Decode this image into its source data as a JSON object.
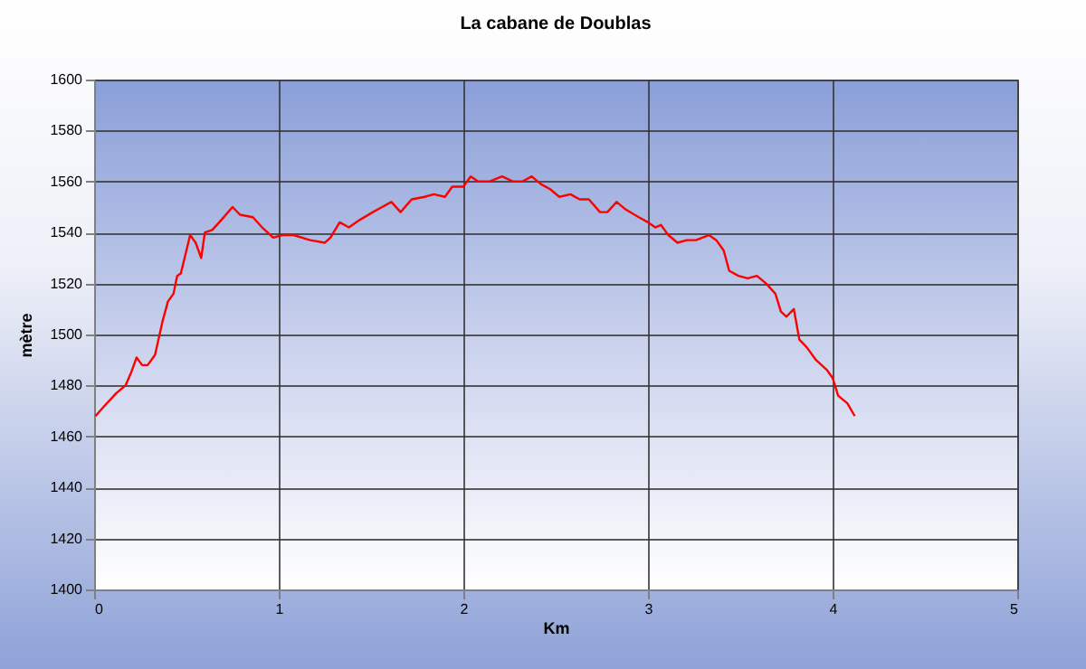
{
  "chart_data": {
    "type": "line",
    "title": "La cabane de Doublas",
    "xlabel": "Km",
    "ylabel": "mètre",
    "x": [
      0.007,
      0.056,
      0.12,
      0.17,
      0.2,
      0.23,
      0.26,
      0.29,
      0.33,
      0.37,
      0.4,
      0.43,
      0.45,
      0.47,
      0.5,
      0.52,
      0.55,
      0.58,
      0.6,
      0.64,
      0.69,
      0.75,
      0.79,
      0.86,
      0.91,
      0.97,
      1.02,
      1.08,
      1.17,
      1.25,
      1.28,
      1.33,
      1.38,
      1.44,
      1.51,
      1.56,
      1.61,
      1.66,
      1.72,
      1.79,
      1.84,
      1.9,
      1.94,
      2.0,
      2.04,
      2.08,
      2.14,
      2.21,
      2.27,
      2.32,
      2.37,
      2.42,
      2.47,
      2.52,
      2.58,
      2.63,
      2.68,
      2.74,
      2.78,
      2.83,
      2.88,
      2.95,
      3.0,
      3.04,
      3.07,
      3.11,
      3.16,
      3.21,
      3.26,
      3.33,
      3.37,
      3.41,
      3.44,
      3.49,
      3.54,
      3.59,
      3.64,
      3.69,
      3.72,
      3.75,
      3.79,
      3.82,
      3.86,
      3.91,
      3.97,
      4.0,
      4.03,
      4.08,
      4.12
    ],
    "series": [
      {
        "color": "#ff0000",
        "values": [
          1468,
          1472,
          1477,
          1480,
          1485,
          1491,
          1488,
          1488,
          1492,
          1505,
          1513,
          1516,
          1523,
          1524,
          1533,
          1539,
          1536,
          1530,
          1540,
          1541,
          1545,
          1550,
          1547,
          1546,
          1542,
          1538,
          1539,
          1539,
          1537,
          1536,
          1538,
          1544,
          1542,
          1545,
          1548,
          1550,
          1552,
          1548,
          1553,
          1554,
          1555,
          1554,
          1558,
          1558,
          1562,
          1560,
          1560,
          1562,
          1560,
          1560,
          1562,
          1559,
          1557,
          1554,
          1555,
          1553,
          1553,
          1548,
          1548,
          1552,
          1549,
          1546,
          1544,
          1542,
          1543,
          1539,
          1536,
          1537,
          1537,
          1539,
          1537,
          1533,
          1525,
          1523,
          1522,
          1523,
          1520,
          1516,
          1509,
          1507,
          1510,
          1498,
          1495,
          1490,
          1486,
          1483,
          1476,
          1473,
          1468
        ]
      }
    ],
    "xlim": [
      0,
      5
    ],
    "xticks": [
      0,
      1,
      2,
      3,
      4,
      5
    ],
    "ylim": [
      1400,
      1600
    ],
    "yticks": [
      1400,
      1420,
      1440,
      1460,
      1480,
      1500,
      1520,
      1540,
      1560,
      1580,
      1600
    ],
    "grid": true
  }
}
